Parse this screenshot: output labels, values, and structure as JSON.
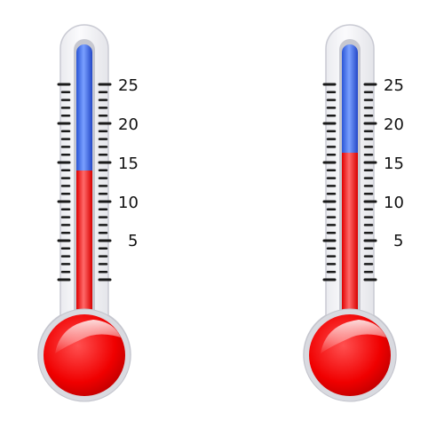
{
  "scale": {
    "labels": [
      "25",
      "20",
      "15",
      "10",
      "5"
    ],
    "values": [
      25,
      20,
      15,
      10,
      5
    ],
    "ticks_per_unit": 1
  },
  "colors": {
    "cold": "#3d6ef2",
    "hot": "#ff1a1a",
    "frame": "#e9e9ee",
    "frame_stroke": "#c9cad3",
    "ticks": "#1a1a1a"
  },
  "thermometers": [
    {
      "id": "left",
      "reading": 14.2
    },
    {
      "id": "right",
      "reading": 16.2
    }
  ]
}
